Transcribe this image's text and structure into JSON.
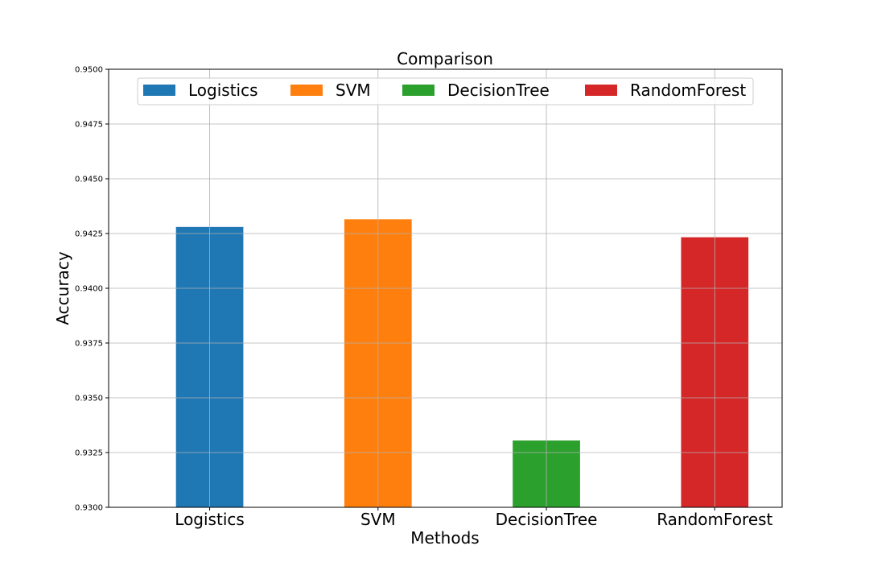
{
  "chart_data": {
    "type": "bar",
    "title": "Comparison",
    "xlabel": "Methods",
    "ylabel": "Accuracy",
    "categories": [
      "Logistics",
      "SVM",
      "DecisionTree",
      "RandomForest"
    ],
    "values": [
      0.9428,
      0.94315,
      0.93305,
      0.94233
    ],
    "ylim": [
      0.93,
      0.95
    ],
    "yticks": [
      "0.9300",
      "0.9325",
      "0.9350",
      "0.9375",
      "0.9400",
      "0.9425",
      "0.9450",
      "0.9475",
      "0.9500"
    ],
    "colors": [
      "#1f77b4",
      "#ff7f0e",
      "#2ca02c",
      "#d62728"
    ],
    "legend": {
      "placement": "top-center",
      "entries": [
        "Logistics",
        "SVM",
        "DecisionTree",
        "RandomForest"
      ]
    },
    "grid": true
  }
}
